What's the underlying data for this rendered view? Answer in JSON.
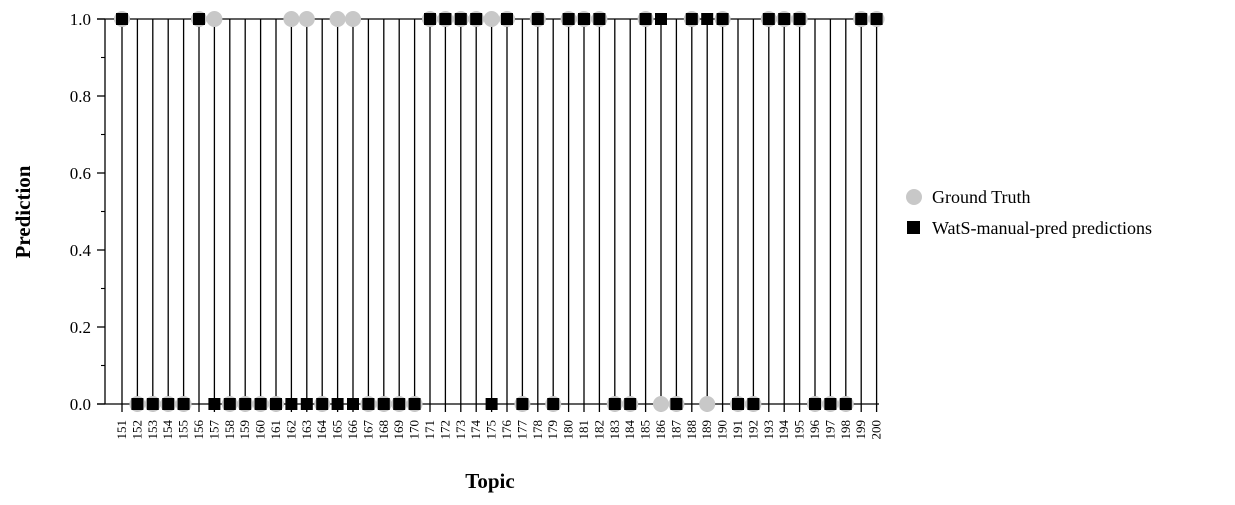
{
  "chart_data": {
    "type": "scatter",
    "xlabel": "Topic",
    "ylabel": "Prediction",
    "ylim": [
      0.0,
      1.0
    ],
    "yticks": [
      "0.0",
      "0.2",
      "0.4",
      "0.6",
      "0.8",
      "1.0"
    ],
    "categories": [
      "151",
      "152",
      "153",
      "154",
      "155",
      "156",
      "157",
      "158",
      "159",
      "160",
      "161",
      "162",
      "163",
      "164",
      "165",
      "166",
      "167",
      "168",
      "169",
      "170",
      "171",
      "172",
      "173",
      "174",
      "175",
      "176",
      "177",
      "178",
      "179",
      "180",
      "181",
      "182",
      "183",
      "184",
      "185",
      "186",
      "187",
      "188",
      "189",
      "190",
      "191",
      "192",
      "193",
      "194",
      "195",
      "196",
      "197",
      "198",
      "199",
      "200"
    ],
    "series": [
      {
        "name": "Ground Truth",
        "marker": "circle",
        "color": "#c8c8c8",
        "values": [
          1,
          0,
          0,
          0,
          0,
          1,
          1,
          0,
          0,
          0,
          0,
          1,
          1,
          0,
          1,
          1,
          0,
          0,
          0,
          0,
          1,
          1,
          1,
          1,
          1,
          1,
          0,
          1,
          0,
          1,
          1,
          1,
          0,
          0,
          1,
          0,
          0,
          1,
          0,
          1,
          0,
          0,
          1,
          1,
          1,
          0,
          0,
          0,
          1,
          1
        ]
      },
      {
        "name": "WatS-manual-pred predictions",
        "marker": "square",
        "color": "#000000",
        "values": [
          1,
          0,
          0,
          0,
          0,
          1,
          0,
          0,
          0,
          0,
          0,
          0,
          0,
          0,
          0,
          0,
          0,
          0,
          0,
          0,
          1,
          1,
          1,
          1,
          0,
          1,
          0,
          1,
          0,
          1,
          1,
          1,
          0,
          0,
          1,
          1,
          0,
          1,
          1,
          1,
          0,
          0,
          1,
          1,
          1,
          0,
          0,
          0,
          1,
          1
        ]
      }
    ],
    "legend_position": "right",
    "grid": false
  }
}
